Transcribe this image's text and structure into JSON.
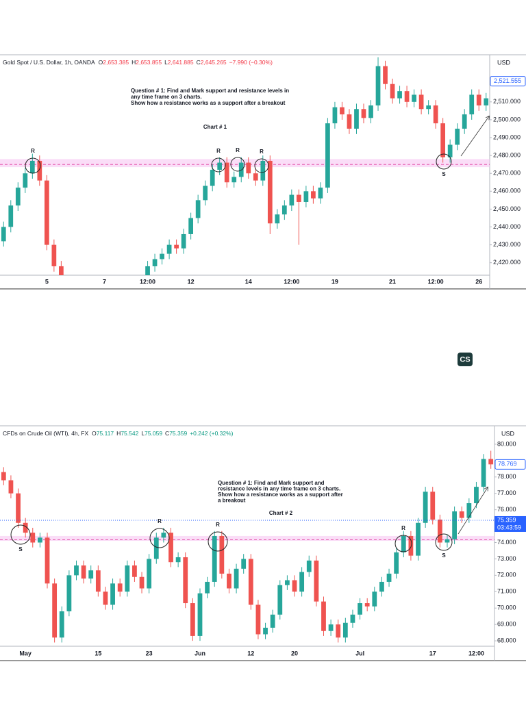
{
  "badge": "CS",
  "chart_data": [
    {
      "type": "candlestick",
      "header": {
        "symbol": "Gold Spot / U.S. Dollar, 1h, OANDA",
        "fields": [
          {
            "key": "O",
            "value": "2,653.385"
          },
          {
            "key": "H",
            "value": "2,653.855"
          },
          {
            "key": "L",
            "value": "2,641.885"
          },
          {
            "key": "C",
            "value": "2,645.265"
          }
        ],
        "change": "−7.990 (−0.30%)",
        "color": "#f23645"
      },
      "currency": "USD",
      "up_color": "#26a69a",
      "down_color": "#ef5350",
      "categories": [
        null,
        null,
        null,
        null,
        null,
        null,
        "5",
        null,
        null,
        null,
        null,
        null,
        null,
        null,
        "7",
        null,
        null,
        null,
        null,
        null,
        "12:00",
        null,
        null,
        null,
        null,
        null,
        "12",
        null,
        null,
        null,
        null,
        null,
        null,
        null,
        "14",
        null,
        null,
        null,
        null,
        null,
        "12:00",
        null,
        null,
        null,
        null,
        null,
        "19",
        null,
        null,
        null,
        null,
        null,
        null,
        null,
        "21",
        null,
        null,
        null,
        null,
        null,
        "12:00",
        null,
        null,
        null,
        null,
        null,
        "26",
        null
      ],
      "open": [
        2432,
        2440,
        2452,
        2462,
        2470,
        2477,
        2466,
        2430,
        2418,
        2408,
        2400,
        2395,
        2402,
        2405,
        2398,
        2400,
        2396,
        2401,
        2398,
        2403,
        2410,
        2418,
        2422,
        2425,
        2430,
        2428,
        2436,
        2445,
        2455,
        2463,
        2472,
        2476,
        2465,
        2468,
        2476,
        2470,
        2466,
        2477,
        2442,
        2447,
        2452,
        2458,
        2454,
        2460,
        2456,
        2462,
        2498,
        2507,
        2503,
        2495,
        2506,
        2501,
        2508,
        2530,
        2520,
        2512,
        2516,
        2510,
        2514,
        2506,
        2508,
        2498,
        2479,
        2486,
        2495,
        2503,
        2514,
        2508
      ],
      "high": [
        2443,
        2455,
        2465,
        2473,
        2481,
        2480,
        2469,
        2433,
        2421,
        2411,
        2403,
        2405,
        2408,
        2408,
        2403,
        2403,
        2404,
        2404,
        2406,
        2413,
        2421,
        2425,
        2428,
        2433,
        2433,
        2439,
        2448,
        2458,
        2466,
        2475,
        2479,
        2479,
        2471,
        2479,
        2479,
        2473,
        2480,
        2480,
        2450,
        2455,
        2461,
        2461,
        2463,
        2463,
        2465,
        2501,
        2510,
        2510,
        2506,
        2509,
        2509,
        2511,
        2535,
        2533,
        2523,
        2519,
        2519,
        2517,
        2517,
        2511,
        2511,
        2501,
        2489,
        2498,
        2506,
        2517,
        2517,
        2515
      ],
      "low": [
        2429,
        2437,
        2449,
        2459,
        2467,
        2463,
        2427,
        2415,
        2405,
        2397,
        2392,
        2392,
        2399,
        2395,
        2395,
        2393,
        2393,
        2395,
        2395,
        2400,
        2407,
        2415,
        2419,
        2422,
        2425,
        2425,
        2433,
        2442,
        2452,
        2460,
        2469,
        2462,
        2462,
        2465,
        2467,
        2463,
        2463,
        2436,
        2439,
        2444,
        2449,
        2430,
        2451,
        2453,
        2453,
        2459,
        2495,
        2500,
        2492,
        2492,
        2498,
        2498,
        2505,
        2517,
        2509,
        2509,
        2507,
        2507,
        2503,
        2503,
        2495,
        2476,
        2476,
        2483,
        2492,
        2500,
        2505,
        2505
      ],
      "close": [
        2440,
        2452,
        2462,
        2470,
        2477,
        2466,
        2430,
        2418,
        2408,
        2400,
        2395,
        2402,
        2405,
        2398,
        2400,
        2396,
        2401,
        2398,
        2403,
        2410,
        2418,
        2422,
        2425,
        2430,
        2428,
        2436,
        2445,
        2455,
        2463,
        2472,
        2476,
        2465,
        2468,
        2476,
        2470,
        2466,
        2477,
        2442,
        2447,
        2452,
        2458,
        2454,
        2460,
        2456,
        2462,
        2498,
        2507,
        2503,
        2495,
        2506,
        2501,
        2508,
        2530,
        2520,
        2512,
        2516,
        2510,
        2514,
        2506,
        2508,
        2498,
        2479,
        2486,
        2495,
        2503,
        2514,
        2508,
        2512
      ],
      "ylim": [
        2413,
        2535.6
      ],
      "yticks": [
        {
          "value": 2420,
          "label": "2,420.000"
        },
        {
          "value": 2430,
          "label": "2,430.000"
        },
        {
          "value": 2440,
          "label": "2,440.000"
        },
        {
          "value": 2450,
          "label": "2,450.000"
        },
        {
          "value": 2460,
          "label": "2,460.000"
        },
        {
          "value": 2470,
          "label": "2,470.000"
        },
        {
          "value": 2480,
          "label": "2,480.000"
        },
        {
          "value": 2490,
          "label": "2,490.000"
        },
        {
          "value": 2500,
          "label": "2,500.000"
        },
        {
          "value": 2510,
          "label": "2,510.000"
        }
      ],
      "price_labels": [
        {
          "value": 2521.555,
          "label": "2,521.555"
        }
      ],
      "zone": [
        2473.5,
        2478
      ],
      "level": 2475,
      "annotations": {
        "question": [
          "Question # 1: Find and Mark support and resistance levels in",
          "any time frame on 3 charts.",
          "Show how a resistance works as a support after a breakout"
        ],
        "chart_label": "Chart # 1",
        "markers": [
          "R",
          "R",
          "R",
          "R",
          "S"
        ]
      }
    },
    {
      "type": "candlestick",
      "header": {
        "symbol": "CFDs on Crude Oil (WTI), 4h, FX",
        "fields": [
          {
            "key": "O",
            "value": "75.117"
          },
          {
            "key": "H",
            "value": "75.542"
          },
          {
            "key": "L",
            "value": "75.059"
          },
          {
            "key": "C",
            "value": "75.359"
          }
        ],
        "change": "+0.242 (+0.32%)",
        "color": "#089981"
      },
      "currency": "USD",
      "up_color": "#26a69a",
      "down_color": "#ef5350",
      "categories": [
        null,
        null,
        null,
        "May",
        null,
        null,
        null,
        null,
        null,
        null,
        null,
        null,
        null,
        "15",
        null,
        null,
        null,
        null,
        null,
        null,
        "23",
        null,
        null,
        null,
        null,
        null,
        null,
        "Jun",
        null,
        null,
        null,
        null,
        null,
        null,
        "12",
        null,
        null,
        null,
        null,
        null,
        "20",
        null,
        null,
        null,
        null,
        null,
        null,
        null,
        null,
        "Jul",
        null,
        null,
        null,
        null,
        null,
        null,
        null,
        null,
        null,
        "17",
        null,
        null,
        null,
        null,
        null,
        "12:00",
        null,
        null
      ],
      "open": [
        78.3,
        77.8,
        77.0,
        75.2,
        74.6,
        74.0,
        74.3,
        71.5,
        68.2,
        69.8,
        72.0,
        72.6,
        71.8,
        72.3,
        71.0,
        70.2,
        71.5,
        71.0,
        72.6,
        71.9,
        71.2,
        73.0,
        74.3,
        74.6,
        72.8,
        73.1,
        70.3,
        68.3,
        70.9,
        71.6,
        74.4,
        72.1,
        71.2,
        72.4,
        73.0,
        70.2,
        68.4,
        68.8,
        69.6,
        71.4,
        71.7,
        71.0,
        72.2,
        72.9,
        70.4,
        68.6,
        69.0,
        68.2,
        69.1,
        69.6,
        70.3,
        70.1,
        71.0,
        71.6,
        72.1,
        73.4,
        74.4,
        73.2,
        75.2,
        77.1,
        75.4,
        74.0,
        74.2,
        75.9,
        75.5,
        76.4,
        77.4,
        79.1
      ],
      "high": [
        78.6,
        78.1,
        77.3,
        75.5,
        74.9,
        74.6,
        74.6,
        71.8,
        70.1,
        72.3,
        72.9,
        72.9,
        72.6,
        72.6,
        71.3,
        71.8,
        71.8,
        72.9,
        72.9,
        72.2,
        73.3,
        74.6,
        74.9,
        74.9,
        73.4,
        73.4,
        70.6,
        71.2,
        71.9,
        74.7,
        74.7,
        72.4,
        72.7,
        73.3,
        73.3,
        70.5,
        69.1,
        69.9,
        71.7,
        72.0,
        72.0,
        72.5,
        73.2,
        73.2,
        70.7,
        69.3,
        69.3,
        69.4,
        69.9,
        70.6,
        70.6,
        71.3,
        71.9,
        72.4,
        73.7,
        74.7,
        74.7,
        75.5,
        77.4,
        77.4,
        75.7,
        74.5,
        76.2,
        76.2,
        76.7,
        77.7,
        79.4,
        79.6
      ],
      "low": [
        77.5,
        76.7,
        74.9,
        74.3,
        73.7,
        73.7,
        71.2,
        67.9,
        67.9,
        69.5,
        71.7,
        71.5,
        71.5,
        70.7,
        69.9,
        69.9,
        70.7,
        70.7,
        71.6,
        70.9,
        70.9,
        72.7,
        74.0,
        72.5,
        72.5,
        70.0,
        68.0,
        68.0,
        70.6,
        71.3,
        71.8,
        70.9,
        70.9,
        72.1,
        69.9,
        68.1,
        68.1,
        68.5,
        69.3,
        71.1,
        70.7,
        70.7,
        71.9,
        70.1,
        68.3,
        68.3,
        67.9,
        67.9,
        68.8,
        69.3,
        69.8,
        69.8,
        70.7,
        71.3,
        71.8,
        73.1,
        72.9,
        72.9,
        74.9,
        75.1,
        73.7,
        73.7,
        73.9,
        75.2,
        75.2,
        76.1,
        77.1,
        78.5
      ],
      "close": [
        77.8,
        77.0,
        75.2,
        74.6,
        74.0,
        74.3,
        71.5,
        68.2,
        69.8,
        72.0,
        72.6,
        71.8,
        72.3,
        71.0,
        70.2,
        71.5,
        71.0,
        72.6,
        71.9,
        71.2,
        73.0,
        74.3,
        74.6,
        72.8,
        73.1,
        70.3,
        68.3,
        70.9,
        71.6,
        74.4,
        72.1,
        71.2,
        72.4,
        73.0,
        70.2,
        68.4,
        68.8,
        69.6,
        71.4,
        71.7,
        71.0,
        72.2,
        72.9,
        70.4,
        68.6,
        69.0,
        68.2,
        69.1,
        69.6,
        70.3,
        70.1,
        71.0,
        71.6,
        72.1,
        73.4,
        74.4,
        73.2,
        75.2,
        77.1,
        75.4,
        74.0,
        74.2,
        75.9,
        75.5,
        76.4,
        77.4,
        79.1,
        78.77
      ],
      "ylim": [
        67.67,
        81.04
      ],
      "yticks": [
        {
          "value": 68,
          "label": "68.000"
        },
        {
          "value": 69,
          "label": "69.000"
        },
        {
          "value": 70,
          "label": "70.000"
        },
        {
          "value": 71,
          "label": "71.000"
        },
        {
          "value": 72,
          "label": "72.000"
        },
        {
          "value": 73,
          "label": "73.000"
        },
        {
          "value": 74,
          "label": "74.000"
        },
        {
          "value": 76,
          "label": "76.000"
        },
        {
          "value": 77,
          "label": "77.000"
        },
        {
          "value": 78,
          "label": "78.000"
        },
        {
          "value": 80,
          "label": "80.000"
        }
      ],
      "price_labels": [
        {
          "value": 78.769,
          "label": "78.769"
        },
        {
          "value": 75.359,
          "label": "75.359",
          "countdown": "03:43:59"
        }
      ],
      "zone": [
        74.1,
        74.4
      ],
      "level": 74.17,
      "annotations": {
        "question": [
          "Question # 1: Find and Mark support and",
          "resistance levels in any time frame on 3 charts.",
          "Show how a resistance works as a support after",
          "a breakout"
        ],
        "chart_label": "Chart # 2",
        "markers": [
          "S",
          "R",
          "R",
          "R",
          "S"
        ]
      }
    }
  ]
}
